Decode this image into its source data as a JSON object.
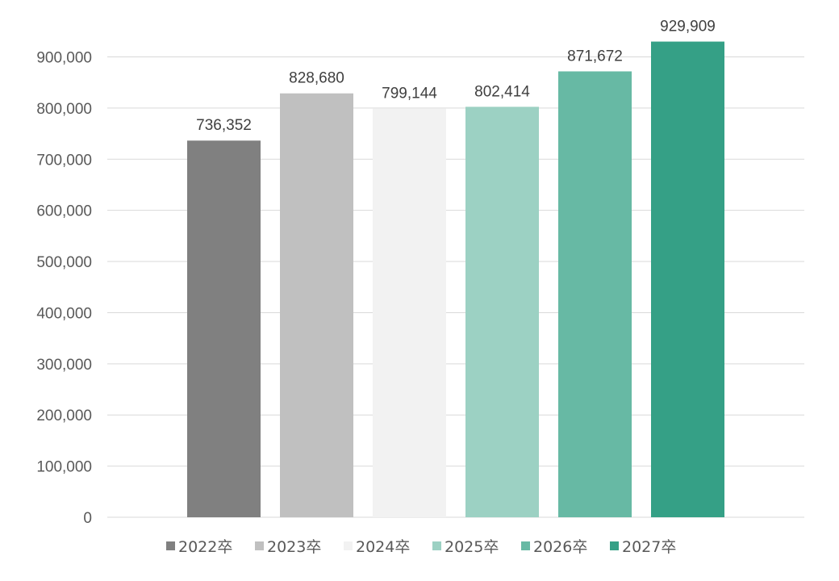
{
  "chart_data": {
    "type": "bar",
    "categories": [
      "2022卒",
      "2023卒",
      "2024卒",
      "2025卒",
      "2026卒",
      "2027卒"
    ],
    "values": [
      736352,
      828680,
      799144,
      802414,
      871672,
      929909
    ],
    "data_labels": [
      "736,352",
      "828,680",
      "799,144",
      "802,414",
      "871,672",
      "929,909"
    ],
    "colors": [
      "#808080",
      "#c0c0c0",
      "#f2f2f2",
      "#9cd1c3",
      "#67b9a4",
      "#35a086"
    ],
    "ylim": [
      0,
      900000
    ],
    "y_ticks": [
      0,
      100000,
      200000,
      300000,
      400000,
      500000,
      600000,
      700000,
      800000,
      900000
    ],
    "y_tick_labels": [
      "0",
      "100,000",
      "200,000",
      "300,000",
      "400,000",
      "500,000",
      "600,000",
      "700,000",
      "800,000",
      "900,000"
    ],
    "grid": true,
    "legend": {
      "position": "bottom",
      "entries": [
        "2022卒",
        "2023卒",
        "2024卒",
        "2025卒",
        "2026卒",
        "2027卒"
      ]
    },
    "title": "",
    "xlabel": "",
    "ylabel": ""
  }
}
